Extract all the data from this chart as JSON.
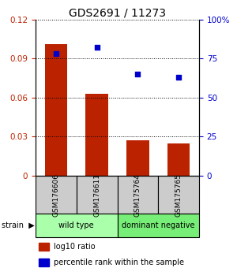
{
  "title": "GDS2691 / 11273",
  "samples": [
    "GSM176606",
    "GSM176611",
    "GSM175764",
    "GSM175765"
  ],
  "bar_values": [
    0.101,
    0.063,
    0.027,
    0.025
  ],
  "scatter_values": [
    78,
    82,
    65,
    63
  ],
  "bar_color": "#bb2200",
  "scatter_color": "#0000cc",
  "ylim_left": [
    0,
    0.12
  ],
  "ylim_right": [
    0,
    100
  ],
  "yticks_left": [
    0,
    0.03,
    0.06,
    0.09,
    0.12
  ],
  "yticks_right": [
    0,
    25,
    50,
    75,
    100
  ],
  "ytick_labels_left": [
    "0",
    "0.03",
    "0.06",
    "0.09",
    "0.12"
  ],
  "ytick_labels_right": [
    "0",
    "25",
    "50",
    "75",
    "100%"
  ],
  "groups": [
    {
      "label": "wild type",
      "indices": [
        0,
        1
      ],
      "color": "#aaffaa"
    },
    {
      "label": "dominant negative",
      "indices": [
        2,
        3
      ],
      "color": "#77ee77"
    }
  ],
  "legend": [
    {
      "color": "#bb2200",
      "label": "log10 ratio"
    },
    {
      "color": "#0000cc",
      "label": "percentile rank within the sample"
    }
  ],
  "label_bg_color": "#cccccc",
  "bg_color": "#ffffff"
}
